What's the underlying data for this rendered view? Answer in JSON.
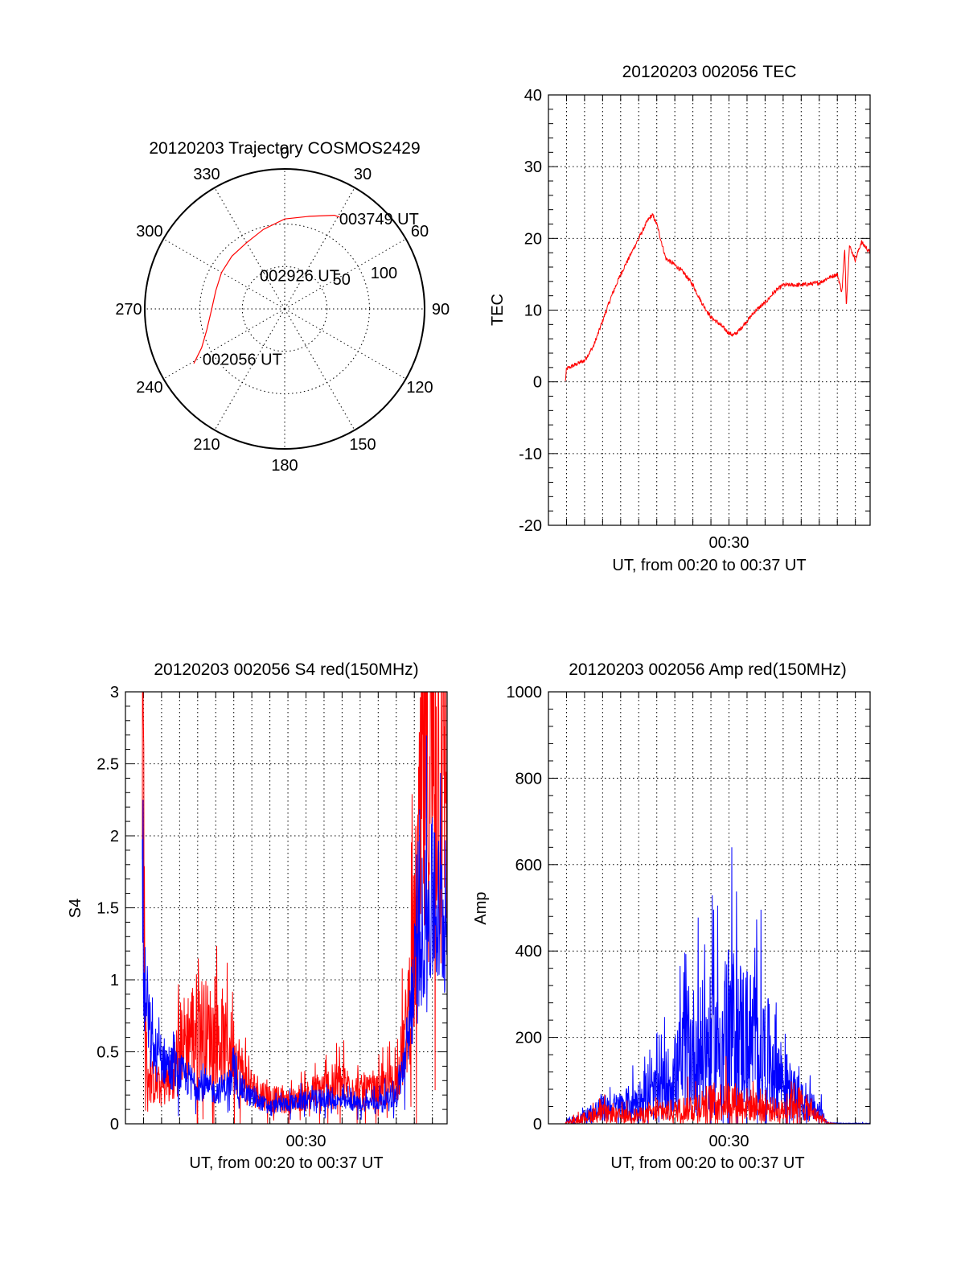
{
  "chart_data": [
    {
      "id": "trajectory",
      "type": "polar",
      "title": "20120203 Trajectory COSMOS2429",
      "azimuth_labels": [
        "0",
        "30",
        "60",
        "90",
        "120",
        "150",
        "180",
        "210",
        "240",
        "270",
        "300",
        "330"
      ],
      "elevation_labels": [
        "50",
        "100"
      ],
      "elevation_label_values": [
        50,
        100
      ],
      "rlim": [
        0,
        165
      ],
      "colors": {
        "track": "#ff0000"
      },
      "track": [
        {
          "az": 239,
          "r": 125
        },
        {
          "az": 245,
          "r": 108
        },
        {
          "az": 255,
          "r": 95
        },
        {
          "az": 270,
          "r": 86
        },
        {
          "az": 285,
          "r": 84
        },
        {
          "az": 300,
          "r": 86
        },
        {
          "az": 315,
          "r": 88
        },
        {
          "az": 330,
          "r": 90
        },
        {
          "az": 345,
          "r": 97
        },
        {
          "az": 0,
          "r": 106
        },
        {
          "az": 15,
          "r": 113
        },
        {
          "az": 28,
          "r": 125
        },
        {
          "az": 31,
          "r": 126
        }
      ],
      "annotations": [
        {
          "text": "003749 UT",
          "az": 32,
          "r": 125
        },
        {
          "text": "002926 UT",
          "az": 325,
          "r": 48
        },
        {
          "text": "002056 UT",
          "az": 238,
          "r": 112
        }
      ]
    },
    {
      "id": "tec",
      "type": "line",
      "title": "20120203 002056 TEC",
      "xlabel": "UT, from 00:20 to 00:37 UT",
      "ylabel": "TEC",
      "xlim": [
        "00:20:00",
        "00:37:49"
      ],
      "ylim": [
        -20,
        40
      ],
      "yticks": [
        -20,
        -10,
        0,
        10,
        20,
        30,
        40
      ],
      "xticks": [
        {
          "t": "00:30:00",
          "label": "00:30"
        }
      ],
      "grid": true,
      "series": [
        {
          "color": "#ff0000",
          "noise": 0.3,
          "points": [
            [
              "00:20:56",
              0.0
            ],
            [
              "00:21:00",
              1.8
            ],
            [
              "00:22:00",
              3.0
            ],
            [
              "00:22:30",
              5.0
            ],
            [
              "00:23:00",
              8.5
            ],
            [
              "00:23:30",
              12.0
            ],
            [
              "00:24:00",
              15.0
            ],
            [
              "00:24:30",
              17.5
            ],
            [
              "00:25:00",
              20.0
            ],
            [
              "00:25:30",
              22.5
            ],
            [
              "00:25:45",
              23.3
            ],
            [
              "00:26:00",
              22.0
            ],
            [
              "00:26:30",
              17.2
            ],
            [
              "00:27:00",
              16.3
            ],
            [
              "00:27:30",
              15.2
            ],
            [
              "00:28:00",
              13.5
            ],
            [
              "00:28:30",
              11.0
            ],
            [
              "00:29:00",
              9.0
            ],
            [
              "00:29:30",
              8.0
            ],
            [
              "00:30:00",
              6.8
            ],
            [
              "00:30:15",
              6.5
            ],
            [
              "00:30:30",
              7.0
            ],
            [
              "00:31:00",
              8.5
            ],
            [
              "00:31:30",
              10.0
            ],
            [
              "00:32:00",
              11.0
            ],
            [
              "00:32:30",
              12.5
            ],
            [
              "00:33:00",
              13.5
            ],
            [
              "00:34:00",
              13.5
            ],
            [
              "00:35:00",
              13.8
            ],
            [
              "00:35:30",
              14.5
            ],
            [
              "00:36:00",
              15.0
            ],
            [
              "00:36:15",
              12.5
            ],
            [
              "00:36:25",
              18.5
            ],
            [
              "00:36:30",
              10.5
            ],
            [
              "00:36:40",
              19.0
            ],
            [
              "00:37:00",
              17.0
            ],
            [
              "00:37:20",
              19.5
            ],
            [
              "00:37:49",
              18.0
            ]
          ]
        }
      ]
    },
    {
      "id": "s4",
      "type": "line",
      "title": "20120203 002056 S4 red(150MHz)",
      "xlabel": "UT, from 00:20 to 00:37 UT",
      "ylabel": "S4",
      "xlim": [
        "00:20:00",
        "00:37:49"
      ],
      "ylim": [
        0,
        3
      ],
      "yticks": [
        0,
        0.5,
        1,
        1.5,
        2,
        2.5,
        3
      ],
      "yticklabels": [
        "0",
        "0.5",
        "1",
        "1.5",
        "2",
        "2.5",
        "3"
      ],
      "xticks": [
        {
          "t": "00:30:00",
          "label": "00:30"
        }
      ],
      "grid": true,
      "series": [
        {
          "color": "#ff0000",
          "noise": 0.55,
          "points": [
            [
              "00:20:56",
              3.0
            ],
            [
              "00:21:00",
              2.3
            ],
            [
              "00:21:06",
              0.5
            ],
            [
              "00:21:20",
              0.3
            ],
            [
              "00:22:00",
              0.25
            ],
            [
              "00:22:30",
              0.3
            ],
            [
              "00:23:00",
              0.55
            ],
            [
              "00:24:00",
              0.7
            ],
            [
              "00:25:00",
              0.6
            ],
            [
              "00:26:00",
              0.5
            ],
            [
              "00:26:30",
              0.35
            ],
            [
              "00:27:00",
              0.25
            ],
            [
              "00:28:00",
              0.18
            ],
            [
              "00:29:00",
              0.15
            ],
            [
              "00:30:00",
              0.2
            ],
            [
              "00:31:00",
              0.25
            ],
            [
              "00:32:00",
              0.28
            ],
            [
              "00:33:00",
              0.22
            ],
            [
              "00:34:00",
              0.22
            ],
            [
              "00:35:00",
              0.3
            ],
            [
              "00:35:30",
              0.6
            ],
            [
              "00:36:00",
              1.2
            ],
            [
              "00:36:30",
              2.3
            ],
            [
              "00:37:00",
              2.6
            ],
            [
              "00:37:49",
              2.6
            ]
          ]
        },
        {
          "color": "#0000ff",
          "noise": 0.4,
          "points": [
            [
              "00:20:56",
              1.8
            ],
            [
              "00:21:00",
              1.0
            ],
            [
              "00:21:10",
              0.8
            ],
            [
              "00:21:30",
              0.5
            ],
            [
              "00:22:00",
              0.45
            ],
            [
              "00:23:00",
              0.35
            ],
            [
              "00:24:00",
              0.27
            ],
            [
              "00:25:00",
              0.22
            ],
            [
              "00:26:00",
              0.3
            ],
            [
              "00:27:00",
              0.18
            ],
            [
              "00:28:00",
              0.12
            ],
            [
              "00:29:00",
              0.14
            ],
            [
              "00:30:00",
              0.16
            ],
            [
              "00:31:00",
              0.18
            ],
            [
              "00:32:00",
              0.15
            ],
            [
              "00:33:00",
              0.14
            ],
            [
              "00:34:00",
              0.15
            ],
            [
              "00:35:00",
              0.2
            ],
            [
              "00:35:30",
              0.45
            ],
            [
              "00:36:00",
              1.0
            ],
            [
              "00:36:30",
              1.4
            ],
            [
              "00:37:00",
              1.5
            ],
            [
              "00:37:49",
              1.4
            ]
          ]
        }
      ]
    },
    {
      "id": "amp",
      "type": "line",
      "title": "20120203 002056 Amp red(150MHz)",
      "xlabel": "UT, from 00:20 to 00:37 UT",
      "ylabel": "Amp",
      "xlim": [
        "00:20:00",
        "00:37:49"
      ],
      "ylim": [
        0,
        1000
      ],
      "yticks": [
        0,
        200,
        400,
        600,
        800,
        1000
      ],
      "xticks": [
        {
          "t": "00:30:00",
          "label": "00:30"
        }
      ],
      "grid": true,
      "series": [
        {
          "color": "#0000ff",
          "noise": 0.9,
          "points": [
            [
              "00:20:56",
              5
            ],
            [
              "00:21:30",
              12
            ],
            [
              "00:22:00",
              18
            ],
            [
              "00:22:30",
              28
            ],
            [
              "00:23:00",
              35
            ],
            [
              "00:24:00",
              40
            ],
            [
              "00:25:00",
              55
            ],
            [
              "00:26:00",
              70
            ],
            [
              "00:27:00",
              110
            ],
            [
              "00:27:30",
              150
            ],
            [
              "00:28:00",
              170
            ],
            [
              "00:29:00",
              180
            ],
            [
              "00:29:30",
              190
            ],
            [
              "00:30:00",
              220
            ],
            [
              "00:30:30",
              210
            ],
            [
              "00:31:00",
              200
            ],
            [
              "00:31:30",
              180
            ],
            [
              "00:32:00",
              160
            ],
            [
              "00:32:30",
              140
            ],
            [
              "00:33:00",
              100
            ],
            [
              "00:33:30",
              70
            ],
            [
              "00:34:00",
              50
            ],
            [
              "00:35:00",
              30
            ],
            [
              "00:35:20",
              10
            ],
            [
              "00:35:30",
              2
            ],
            [
              "00:36:00",
              1
            ],
            [
              "00:37:49",
              1
            ]
          ]
        },
        {
          "color": "#ff0000",
          "noise": 0.9,
          "points": [
            [
              "00:20:56",
              3
            ],
            [
              "00:21:30",
              8
            ],
            [
              "00:22:00",
              15
            ],
            [
              "00:23:00",
              25
            ],
            [
              "00:24:00",
              18
            ],
            [
              "00:25:00",
              20
            ],
            [
              "00:26:00",
              25
            ],
            [
              "00:27:00",
              30
            ],
            [
              "00:28:00",
              40
            ],
            [
              "00:29:00",
              50
            ],
            [
              "00:30:00",
              55
            ],
            [
              "00:31:00",
              45
            ],
            [
              "00:32:00",
              35
            ],
            [
              "00:33:00",
              30
            ],
            [
              "00:33:30",
              55
            ],
            [
              "00:34:00",
              45
            ],
            [
              "00:34:30",
              30
            ],
            [
              "00:35:00",
              15
            ],
            [
              "00:35:30",
              2
            ],
            [
              "00:36:00",
              0
            ],
            [
              "00:37:49",
              0
            ]
          ]
        }
      ]
    }
  ]
}
